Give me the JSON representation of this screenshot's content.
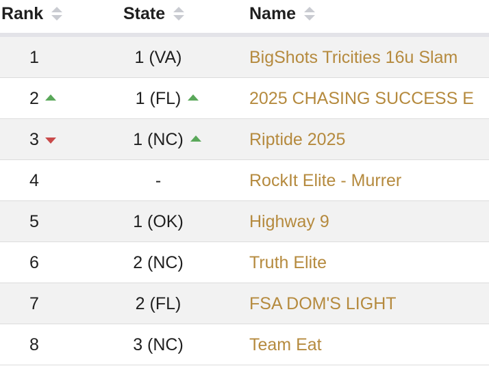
{
  "header": {
    "rank_label": "Rank",
    "state_label": "State",
    "name_label": "Name"
  },
  "icons": {
    "sort": "sort-icon",
    "trend_up": "triangle-up-icon",
    "trend_down": "triangle-down-icon"
  },
  "colors": {
    "name_link": "#b58a3e",
    "trend_up": "#5aa85a",
    "trend_down": "#c94a4a",
    "row_alt": "#f2f2f2"
  },
  "rows": [
    {
      "rank": "1",
      "rank_trend": "",
      "state": "1 (VA)",
      "state_trend": "",
      "name": "BigShots Tricities 16u Slam"
    },
    {
      "rank": "2",
      "rank_trend": "up",
      "state": "1 (FL)",
      "state_trend": "up",
      "name": "2025 CHASING SUCCESS E"
    },
    {
      "rank": "3",
      "rank_trend": "down",
      "state": "1 (NC)",
      "state_trend": "up",
      "name": "Riptide 2025"
    },
    {
      "rank": "4",
      "rank_trend": "",
      "state": "-",
      "state_trend": "",
      "name": "RockIt Elite - Murrer"
    },
    {
      "rank": "5",
      "rank_trend": "",
      "state": "1 (OK)",
      "state_trend": "",
      "name": "Highway 9"
    },
    {
      "rank": "6",
      "rank_trend": "",
      "state": "2 (NC)",
      "state_trend": "",
      "name": "Truth Elite"
    },
    {
      "rank": "7",
      "rank_trend": "",
      "state": "2 (FL)",
      "state_trend": "",
      "name": "FSA DOM'S LIGHT"
    },
    {
      "rank": "8",
      "rank_trend": "",
      "state": "3 (NC)",
      "state_trend": "",
      "name": "Team Eat"
    }
  ]
}
